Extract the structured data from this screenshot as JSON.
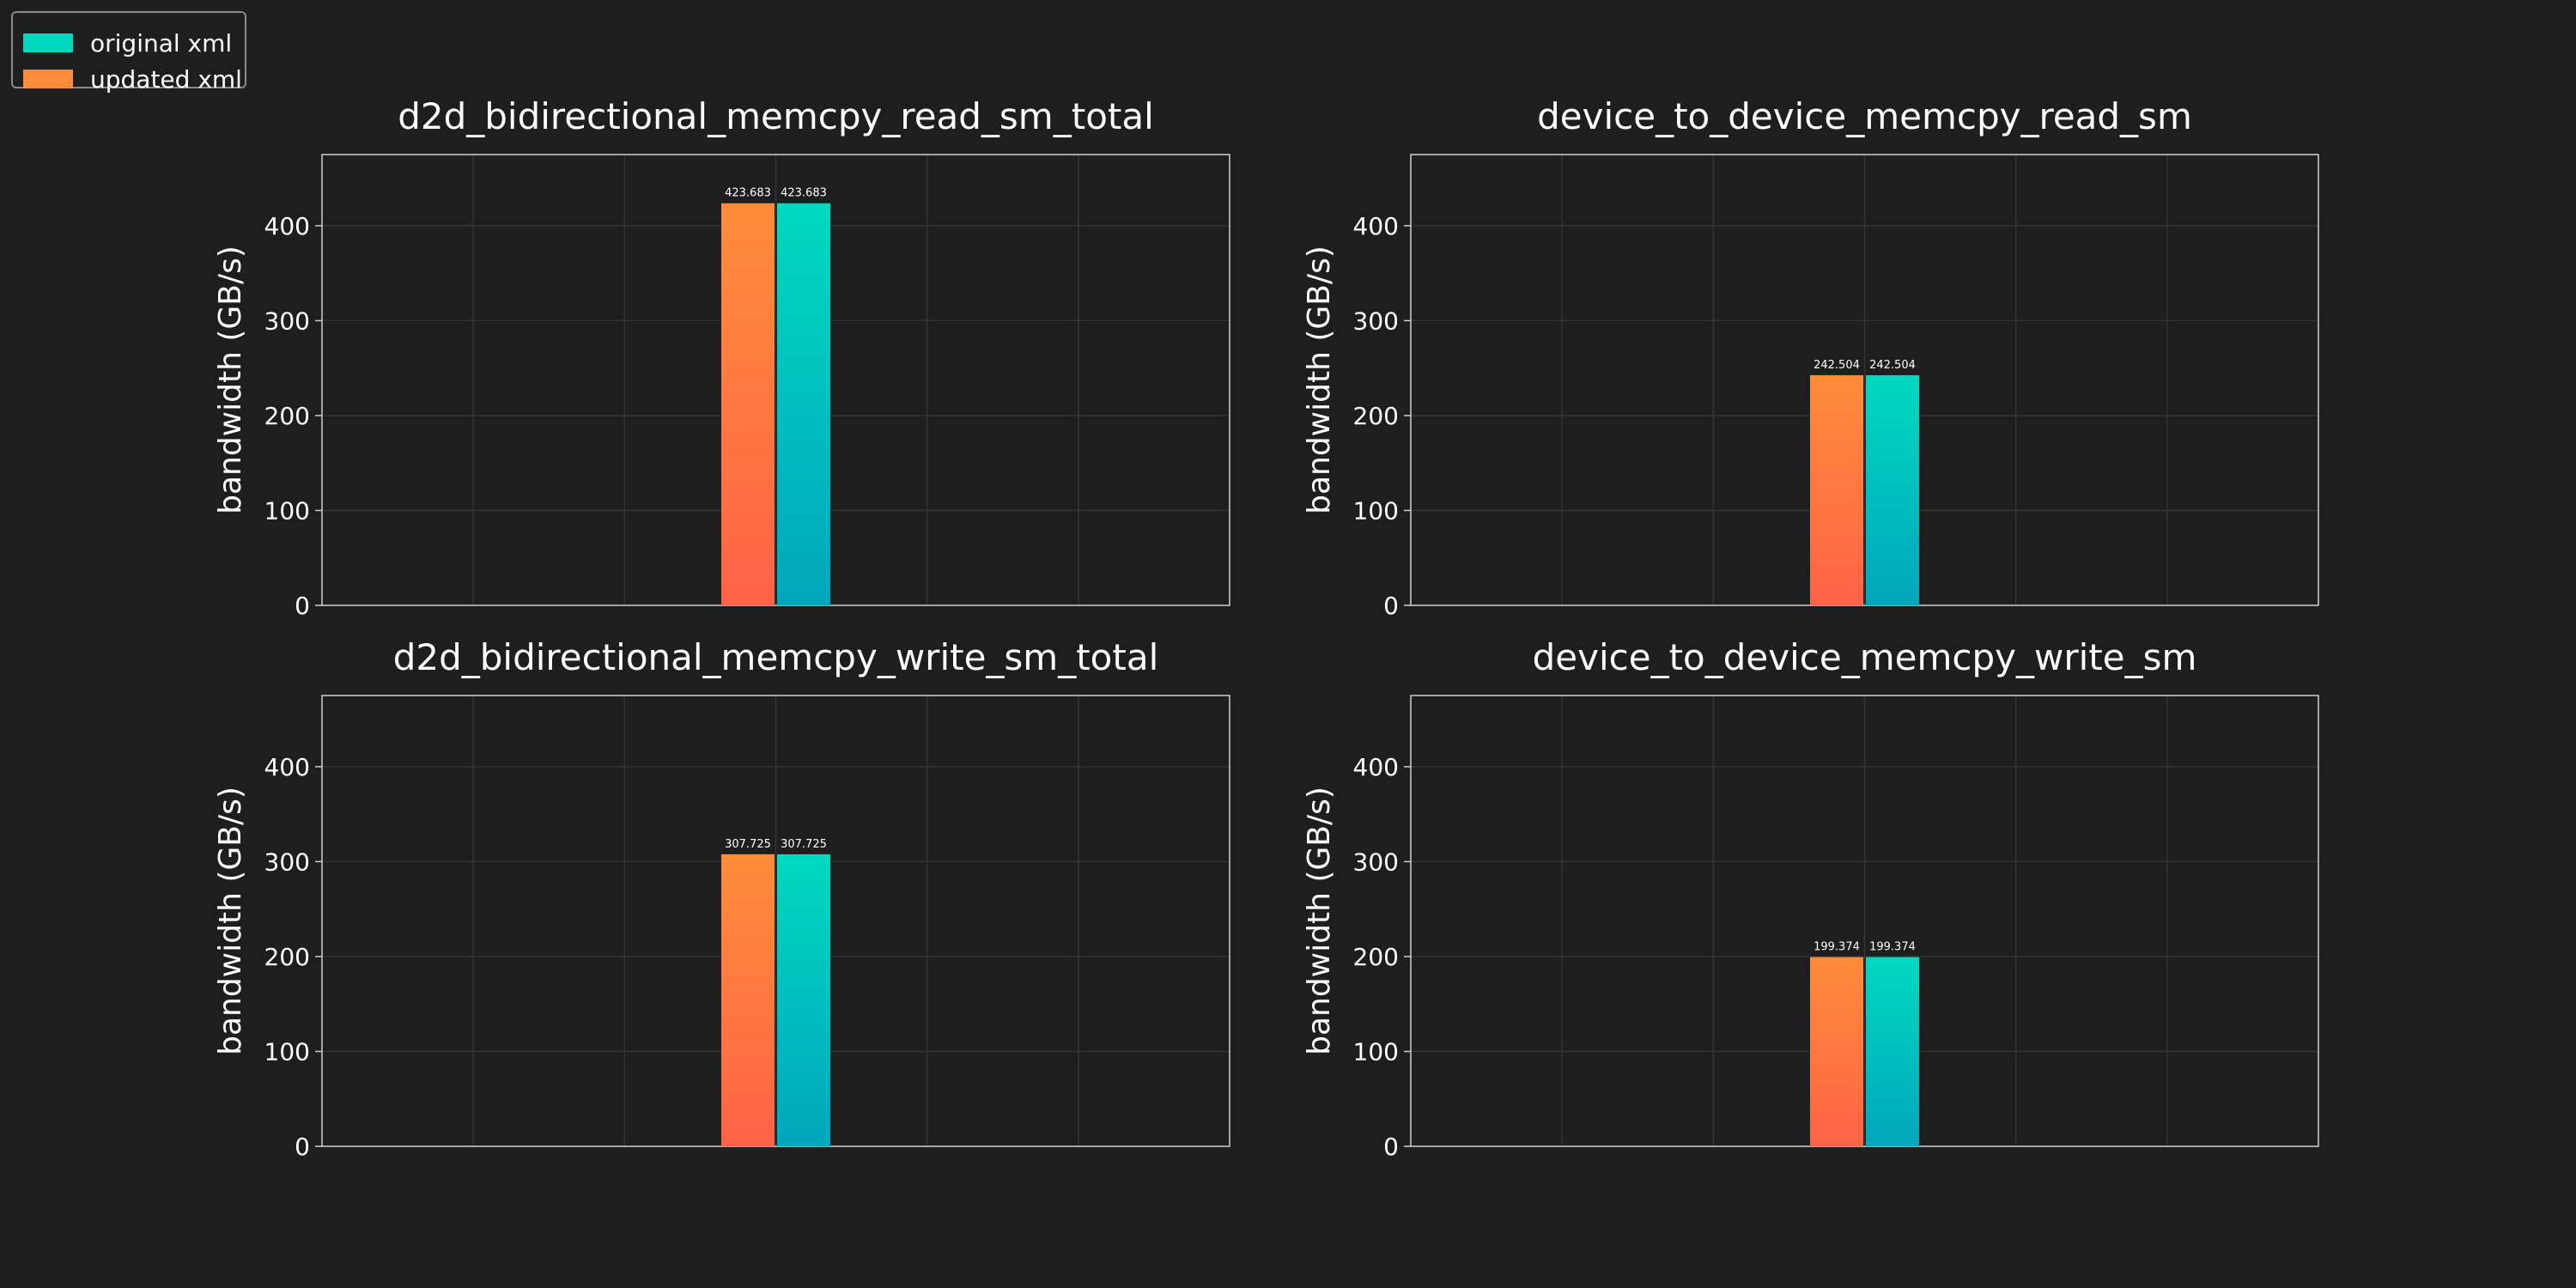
{
  "legend": {
    "items": [
      {
        "label": "original xml",
        "color": "#00d9bf"
      },
      {
        "label": "updated xml",
        "color": "#ff8c3a"
      }
    ]
  },
  "colors": {
    "background": "#1e1e1e",
    "frame": "#d0d0d0",
    "grid": "#343434",
    "updated_top": "#ff8c3a",
    "updated_bottom": "#ff6347",
    "original_top": "#00d9bf",
    "original_bottom": "#00a6bc"
  },
  "chart_data": [
    {
      "type": "bar",
      "title": "d2d_bidirectional_memcpy_read_sm_total",
      "ylabel": "bandwidth (GB/s)",
      "ylim": [
        0,
        475
      ],
      "yticks": [
        0,
        100,
        200,
        300,
        400
      ],
      "grid": true,
      "series": [
        {
          "name": "updated xml",
          "values": [
            423.683
          ],
          "labels": [
            "423.683"
          ]
        },
        {
          "name": "original xml",
          "values": [
            423.683
          ],
          "labels": [
            "423.683"
          ]
        }
      ]
    },
    {
      "type": "bar",
      "title": "device_to_device_memcpy_read_sm",
      "ylabel": "bandwidth (GB/s)",
      "ylim": [
        0,
        475
      ],
      "yticks": [
        0,
        100,
        200,
        300,
        400
      ],
      "grid": true,
      "series": [
        {
          "name": "updated xml",
          "values": [
            242.504
          ],
          "labels": [
            "242.504"
          ]
        },
        {
          "name": "original xml",
          "values": [
            242.504
          ],
          "labels": [
            "242.504"
          ]
        }
      ]
    },
    {
      "type": "bar",
      "title": "d2d_bidirectional_memcpy_write_sm_total",
      "ylabel": "bandwidth (GB/s)",
      "ylim": [
        0,
        475
      ],
      "yticks": [
        0,
        100,
        200,
        300,
        400
      ],
      "grid": true,
      "series": [
        {
          "name": "updated xml",
          "values": [
            307.725
          ],
          "labels": [
            "307.725"
          ]
        },
        {
          "name": "original xml",
          "values": [
            307.725
          ],
          "labels": [
            "307.725"
          ]
        }
      ]
    },
    {
      "type": "bar",
      "title": "device_to_device_memcpy_write_sm",
      "ylabel": "bandwidth (GB/s)",
      "ylim": [
        0,
        475
      ],
      "yticks": [
        0,
        100,
        200,
        300,
        400
      ],
      "grid": true,
      "series": [
        {
          "name": "updated xml",
          "values": [
            199.374
          ],
          "labels": [
            "199.374"
          ]
        },
        {
          "name": "original xml",
          "values": [
            199.374
          ],
          "labels": [
            "199.374"
          ]
        }
      ]
    }
  ]
}
